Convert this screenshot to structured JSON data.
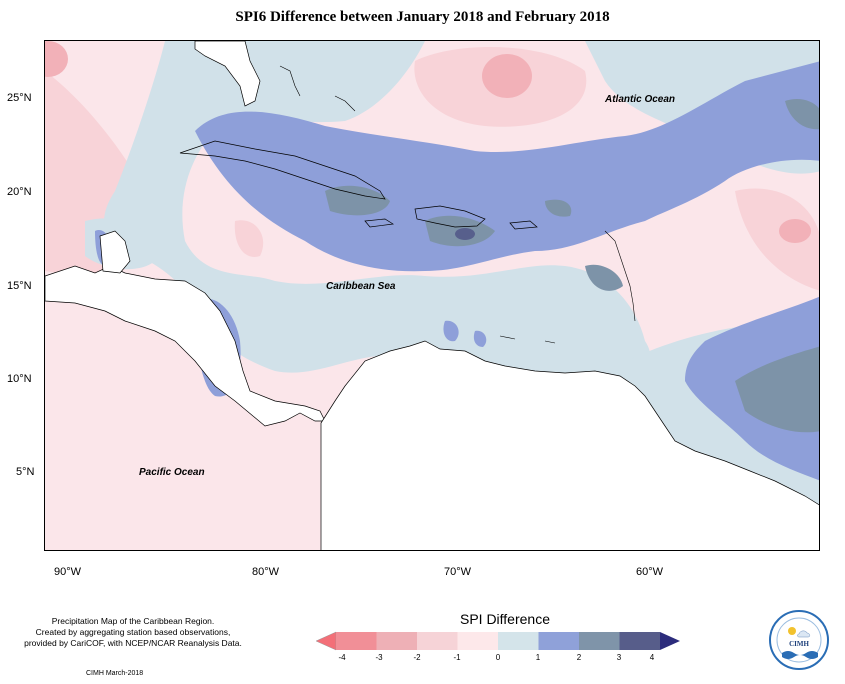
{
  "title": "SPI6 Difference between January 2018 and February 2018",
  "map": {
    "lon_ticks": [
      "90°W",
      "80°W",
      "70°W",
      "60°W"
    ],
    "lat_ticks": [
      "25°N",
      "20°N",
      "15°N",
      "10°N",
      "5°N"
    ],
    "labels": {
      "atlantic": "Atlantic Ocean",
      "caribbean": "Caribbean Sea",
      "pacific": "Pacific Ocean"
    },
    "class_colors": {
      "-4": "#f18f97",
      "-3": "#f2b1b8",
      "-2": "#f8d3d8",
      "-1": "#fbe6ea",
      "0": "#d1e1e9",
      "1": "#8e9fd9",
      "2": "#7d93a8",
      "3": "#575f8c"
    },
    "land_color": "#ffffff"
  },
  "legend": {
    "title": "SPI Difference",
    "ticks": [
      "-4",
      "-3",
      "-2",
      "-1",
      "0",
      "1",
      "2",
      "3",
      "4"
    ],
    "colors": [
      "#f18f97",
      "#eeb0b6",
      "#f6d3d7",
      "#fde8ea",
      "#d4e4ea",
      "#8fa1d9",
      "#7f94a9",
      "#575d8a"
    ],
    "end_low_color": "#f36f78",
    "end_high_color": "#2c2c7c"
  },
  "credits": {
    "line1": "Precipitation Map of the Caribbean Region.",
    "line2": "Created by aggregating station based observations,",
    "line3": "provided by CariCOF, with NCEP/NCAR Reanalysis Data.",
    "footer": "CIMH March-2018"
  },
  "logo": {
    "text": "CIMH"
  }
}
